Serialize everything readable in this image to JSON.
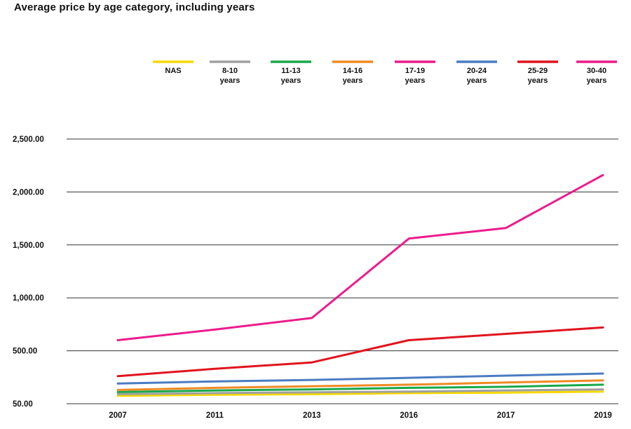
{
  "chart_data": {
    "type": "line",
    "title": "Average price by age category, including years",
    "xlabel": "",
    "ylabel": "",
    "categories": [
      "2007",
      "2011",
      "2013",
      "2016",
      "2017",
      "2019"
    ],
    "y_ticks": [
      "50.00",
      "500.00",
      "1,000.00",
      "1,500.00",
      "2,000.00",
      "2,500.00"
    ],
    "ylim": [
      0,
      2500
    ],
    "grid": true,
    "legend_position": "top",
    "series": [
      {
        "name": [
          "NAS"
        ],
        "color": "#f5d800",
        "values": [
          75,
          85,
          90,
          100,
          105,
          115
        ]
      },
      {
        "name": [
          "8-10",
          "years"
        ],
        "color": "#a0a0a0",
        "values": [
          90,
          100,
          108,
          115,
          125,
          135
        ]
      },
      {
        "name": [
          "11-13",
          "years"
        ],
        "color": "#18a84a",
        "values": [
          110,
          125,
          135,
          150,
          160,
          180
        ]
      },
      {
        "name": [
          "14-16",
          "years"
        ],
        "color": "#f08a24",
        "values": [
          130,
          150,
          165,
          180,
          200,
          220
        ]
      },
      {
        "name": [
          "17-19",
          "years"
        ],
        "color": "#ec1c8c",
        "values": [
          1,
          1,
          1,
          1,
          1,
          1
        ]
      },
      {
        "name": [
          "20-24",
          "years"
        ],
        "color": "#4a7cc2",
        "values": [
          190,
          210,
          225,
          245,
          265,
          285
        ]
      },
      {
        "name": [
          "25-29",
          "years"
        ],
        "color": "#e0141e",
        "values": [
          260,
          330,
          390,
          600,
          660,
          720
        ]
      },
      {
        "name": [
          "30-40",
          "years"
        ],
        "color": "#ec1c8c",
        "values": [
          600,
          700,
          810,
          1560,
          1660,
          2160
        ]
      }
    ]
  }
}
